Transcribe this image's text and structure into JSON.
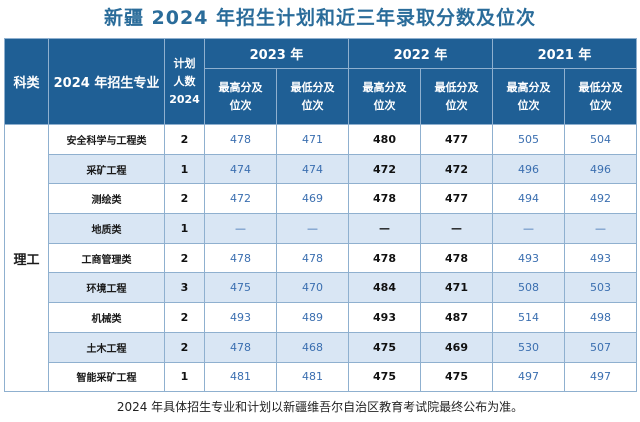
{
  "title": "新疆 2024 年招生计划和近三年录取分数及位次",
  "header": {
    "category": "科类",
    "major": "2024 年招生专业",
    "plan_line1": "计划",
    "plan_line2": "人数",
    "plan_line3": "2024",
    "years": [
      "2023 年",
      "2022 年",
      "2021 年"
    ],
    "max_line1": "最高分及",
    "max_line2": "位次",
    "min_line1": "最低分及",
    "min_line2": "位次"
  },
  "category_value": "理工",
  "rows": [
    {
      "major": "安全科学与工程类",
      "plan": "2",
      "y2023_max": "478",
      "y2023_min": "471",
      "y2022_max": "480",
      "y2022_min": "477",
      "y2021_max": "505",
      "y2021_min": "504"
    },
    {
      "major": "采矿工程",
      "plan": "1",
      "y2023_max": "474",
      "y2023_min": "474",
      "y2022_max": "472",
      "y2022_min": "472",
      "y2021_max": "496",
      "y2021_min": "496"
    },
    {
      "major": "测绘类",
      "plan": "2",
      "y2023_max": "472",
      "y2023_min": "469",
      "y2022_max": "478",
      "y2022_min": "477",
      "y2021_max": "494",
      "y2021_min": "492"
    },
    {
      "major": "地质类",
      "plan": "1",
      "y2023_max": "—",
      "y2023_min": "—",
      "y2022_max": "—",
      "y2022_min": "—",
      "y2021_max": "—",
      "y2021_min": "—"
    },
    {
      "major": "工商管理类",
      "plan": "2",
      "y2023_max": "478",
      "y2023_min": "478",
      "y2022_max": "478",
      "y2022_min": "478",
      "y2021_max": "493",
      "y2021_min": "493"
    },
    {
      "major": "环境工程",
      "plan": "3",
      "y2023_max": "475",
      "y2023_min": "470",
      "y2022_max": "484",
      "y2022_min": "471",
      "y2021_max": "508",
      "y2021_min": "503"
    },
    {
      "major": "机械类",
      "plan": "2",
      "y2023_max": "493",
      "y2023_min": "489",
      "y2022_max": "493",
      "y2022_min": "487",
      "y2021_max": "514",
      "y2021_min": "498"
    },
    {
      "major": "土木工程",
      "plan": "2",
      "y2023_max": "478",
      "y2023_min": "468",
      "y2022_max": "475",
      "y2022_min": "469",
      "y2021_max": "530",
      "y2021_min": "507"
    },
    {
      "major": "智能采矿工程",
      "plan": "1",
      "y2023_max": "481",
      "y2023_min": "481",
      "y2022_max": "475",
      "y2022_min": "475",
      "y2021_max": "497",
      "y2021_min": "497"
    }
  ],
  "footer": "2024 年具体招生专业和计划以新疆维吾尔自治区教育考试院最终公布为准。",
  "colors": {
    "header_bg": "#1f5f95",
    "title": "#2a6c9a",
    "shade": "#d9e6f4",
    "blue_text": "#3b6fb0"
  }
}
